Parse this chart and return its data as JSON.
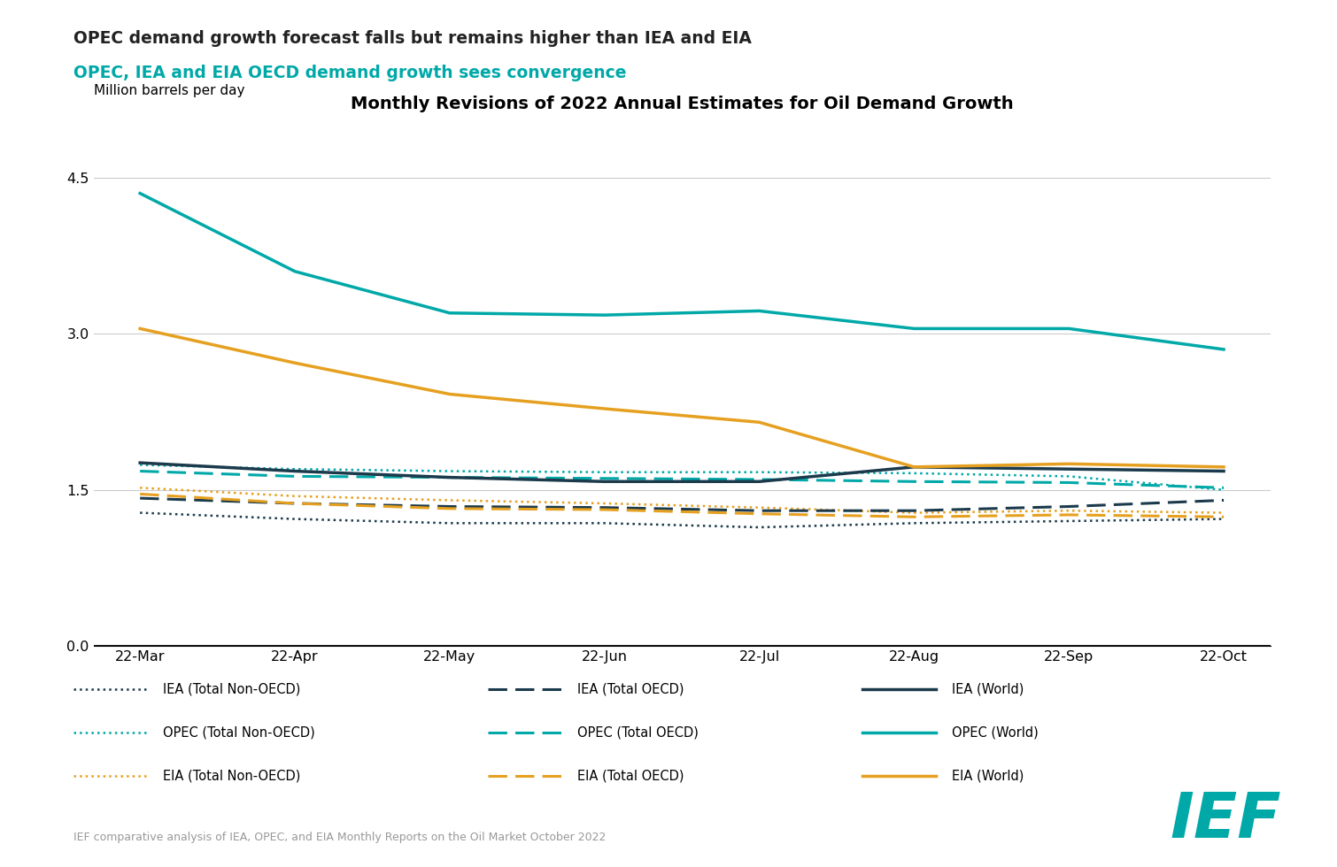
{
  "title": "Monthly Revisions of 2022 Annual Estimates for Oil Demand Growth",
  "subtitle1": "OPEC demand growth forecast falls but remains higher than IEA and EIA",
  "subtitle2": "OPEC, IEA and EIA OECD demand growth sees convergence",
  "ylabel": "Million barrels per day",
  "footnote": "IEF comparative analysis of IEA, OPEC, and EIA Monthly Reports on the Oil Market October 2022",
  "x_labels": [
    "22-Mar",
    "22-Apr",
    "22-May",
    "22-Jun",
    "22-Jul",
    "22-Aug",
    "22-Sep",
    "22-Oct"
  ],
  "ylim": [
    0.0,
    5.0
  ],
  "yticks": [
    0.0,
    1.5,
    3.0,
    4.5
  ],
  "ytick_labels": [
    "0.0",
    "1.5",
    "3.0",
    "4.5"
  ],
  "colors": {
    "iea": "#1b3a4b",
    "opec": "#00a8a8",
    "eia": "#e6a020"
  },
  "series": {
    "IEA_World": [
      1.76,
      1.68,
      1.62,
      1.58,
      1.58,
      1.72,
      1.7,
      1.68
    ],
    "IEA_OECD": [
      1.42,
      1.37,
      1.34,
      1.33,
      1.3,
      1.3,
      1.34,
      1.4
    ],
    "IEA_NonOECD": [
      1.28,
      1.22,
      1.18,
      1.18,
      1.14,
      1.18,
      1.2,
      1.22
    ],
    "OPEC_World": [
      4.35,
      3.6,
      3.2,
      3.18,
      3.22,
      3.05,
      3.05,
      2.85
    ],
    "OPEC_OECD": [
      1.68,
      1.63,
      1.62,
      1.61,
      1.6,
      1.58,
      1.57,
      1.52
    ],
    "OPEC_NonOECD": [
      1.74,
      1.7,
      1.68,
      1.67,
      1.67,
      1.66,
      1.63,
      1.5
    ],
    "EIA_World": [
      3.05,
      2.72,
      2.42,
      2.28,
      2.15,
      1.72,
      1.75,
      1.72
    ],
    "EIA_OECD": [
      1.46,
      1.37,
      1.32,
      1.31,
      1.27,
      1.24,
      1.26,
      1.24
    ],
    "EIA_NonOECD": [
      1.52,
      1.44,
      1.4,
      1.37,
      1.33,
      1.28,
      1.3,
      1.28
    ]
  },
  "background": "#ffffff",
  "subtitle1_color": "#222222",
  "subtitle2_color": "#00a8a8",
  "ief_color": "#00a8a8",
  "grid_color": "#cccccc",
  "footnote_color": "#999999"
}
